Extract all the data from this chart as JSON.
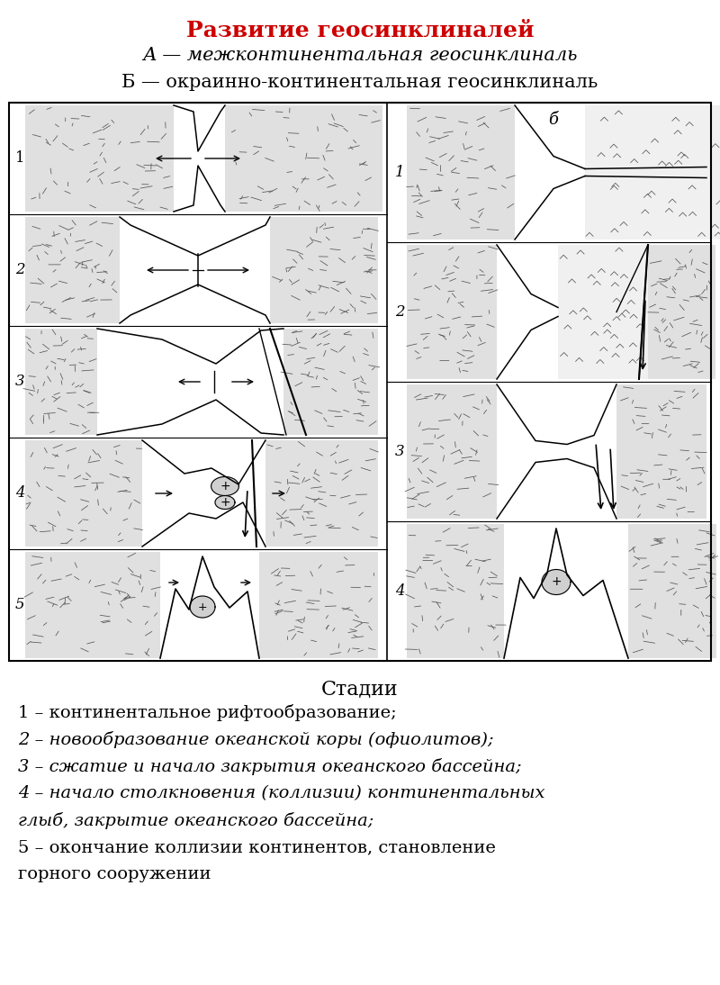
{
  "title": "Развитие геосинклиналей",
  "subtitle_a": "А — межконтинентальная геосинклиналь",
  "subtitle_b": "Б — окраинно-континентальная геосинклиналь",
  "label_b": "б",
  "stages_title": "Стадии",
  "legend1": "1 – континентальное рифтообразование;",
  "legend2": "2 – новообразование океанской коры (офиолитов);",
  "legend3": "3 – сжатие и начало закрытия океанского бассейна;",
  "legend4a": "4 – начало столкновения (коллизии) континентальных",
  "legend4b": "глыб, закрытие океанского бассейна;",
  "legend5a": "5 – окончание коллизии континентов, становление",
  "legend5b": "горного сооружении",
  "title_color": "#cc0000",
  "bg_color": "#ffffff",
  "text_color": "#000000",
  "granite_color": "#e0e0e0",
  "title_fontsize": 18,
  "subtitle_fontsize": 15,
  "legend_fontsize": 14,
  "stages_fontsize": 16
}
